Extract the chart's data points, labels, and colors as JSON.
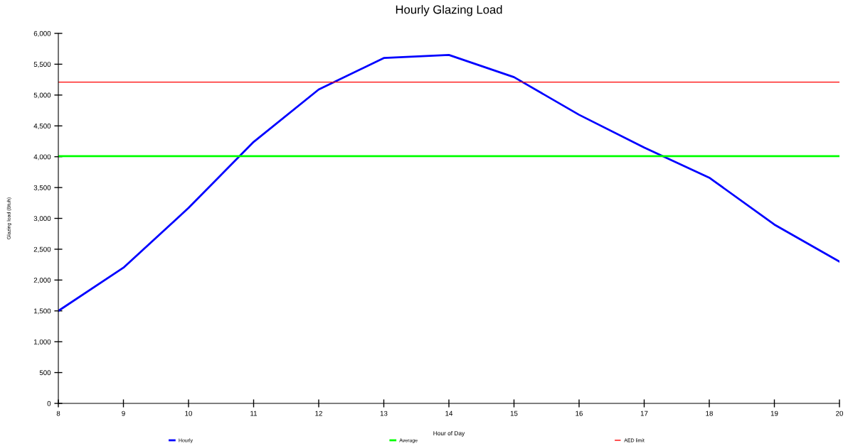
{
  "chart_data": {
    "type": "line",
    "title": "Hourly Glazing Load",
    "xlabel": "Hour of Day",
    "ylabel": "Glazing load (Btuh)",
    "x": [
      8,
      9,
      10,
      11,
      12,
      13,
      14,
      15,
      16,
      17,
      18,
      19,
      20
    ],
    "series": [
      {
        "name": "Hourly",
        "color": "#0000ff",
        "values": [
          1500,
          2200,
          3170,
          4240,
          5090,
          5600,
          5650,
          5290,
          4680,
          4150,
          3660,
          2900,
          2300
        ]
      }
    ],
    "ref_lines": [
      {
        "axis": "y",
        "value": 4010,
        "label": "Average",
        "color": "#00ff00"
      },
      {
        "axis": "y",
        "value": 5210,
        "label": "AED limit",
        "color": "#ff0000"
      }
    ],
    "xlim": [
      8,
      20
    ],
    "xticks": [
      8,
      9,
      10,
      11,
      12,
      13,
      14,
      15,
      16,
      17,
      18,
      19,
      20
    ],
    "ylim": [
      0,
      6000
    ],
    "yticks": [
      {
        "value": 0,
        "label": "0"
      },
      {
        "value": 500,
        "label": "500"
      },
      {
        "value": 1000,
        "label": "1,000"
      },
      {
        "value": 1500,
        "label": "1,500"
      },
      {
        "value": 2000,
        "label": "2,000"
      },
      {
        "value": 2500,
        "label": "2,500"
      },
      {
        "value": 3000,
        "label": "3,000"
      },
      {
        "value": 3500,
        "label": "3,500"
      },
      {
        "value": 4000,
        "label": "4,000"
      },
      {
        "value": 4500,
        "label": "4,500"
      },
      {
        "value": 5000,
        "label": "5,000"
      },
      {
        "value": 5500,
        "label": "5,500"
      },
      {
        "value": 6000,
        "label": "6,000"
      }
    ],
    "grid": false,
    "legend": "bottom",
    "marker": "none",
    "line_style": "solid"
  }
}
